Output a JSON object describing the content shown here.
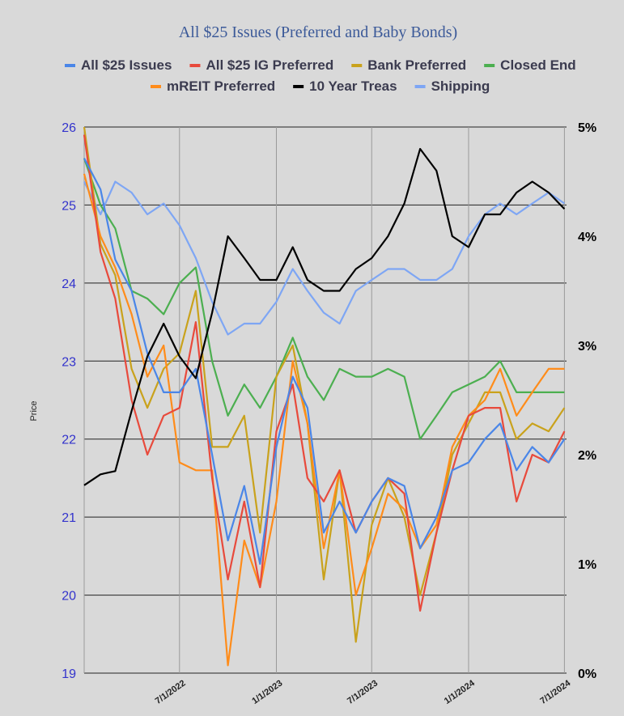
{
  "chart_data": {
    "type": "line",
    "title": "All $25 Issues (Preferred and Baby Bonds)",
    "ylabel": "Price",
    "ylim": [
      19,
      26
    ],
    "y2lim": [
      0,
      5
    ],
    "yticks": [
      "19",
      "20",
      "21",
      "22",
      "23",
      "24",
      "25",
      "26"
    ],
    "y2ticks": [
      "0%",
      "1%",
      "2%",
      "3%",
      "4%",
      "5%"
    ],
    "xlim": [
      "2022-01-01",
      "2024-07-05"
    ],
    "xticks": [
      {
        "date": "2022-07-01",
        "label": "7/1/2022"
      },
      {
        "date": "2023-01-01",
        "label": "1/1/2023"
      },
      {
        "date": "2023-07-01",
        "label": "7/1/2023"
      },
      {
        "date": "2024-01-01",
        "label": "1/1/2024"
      },
      {
        "date": "2024-07-01",
        "label": "7/1/2024"
      }
    ],
    "legend_position": "top",
    "x": [
      "2022-01-01",
      "2022-02-01",
      "2022-03-01",
      "2022-04-01",
      "2022-05-01",
      "2022-06-01",
      "2022-07-01",
      "2022-08-01",
      "2022-09-01",
      "2022-10-01",
      "2022-11-01",
      "2022-12-01",
      "2023-01-01",
      "2023-02-01",
      "2023-03-01",
      "2023-04-01",
      "2023-05-01",
      "2023-06-01",
      "2023-07-01",
      "2023-08-01",
      "2023-09-01",
      "2023-10-01",
      "2023-11-01",
      "2023-12-01",
      "2024-01-01",
      "2024-02-01",
      "2024-03-01",
      "2024-04-01",
      "2024-05-01",
      "2024-06-01",
      "2024-07-01"
    ],
    "series": [
      {
        "name": "All $25 Issues",
        "color": "#4a86e8",
        "axis": "left",
        "values": [
          25.6,
          25.2,
          24.3,
          23.9,
          23.1,
          22.6,
          22.6,
          22.9,
          21.8,
          20.7,
          21.4,
          20.4,
          21.9,
          22.8,
          22.4,
          20.8,
          21.2,
          20.8,
          21.2,
          21.5,
          21.4,
          20.6,
          21.0,
          21.6,
          21.7,
          22.0,
          22.2,
          21.6,
          21.9,
          21.7,
          22.0
        ]
      },
      {
        "name": "All $25 IG Preferred",
        "color": "#e84a3c",
        "axis": "left",
        "values": [
          25.9,
          24.4,
          23.8,
          22.5,
          21.8,
          22.3,
          22.4,
          23.5,
          21.5,
          20.2,
          21.2,
          20.1,
          22.1,
          22.7,
          21.5,
          21.2,
          21.6,
          20.8,
          21.2,
          21.5,
          21.3,
          19.8,
          20.8,
          21.6,
          22.3,
          22.4,
          22.4,
          21.2,
          21.8,
          21.7,
          22.1
        ]
      },
      {
        "name": "Bank Preferred",
        "color": "#c9a21c",
        "axis": "left",
        "values": [
          26.0,
          24.5,
          24.1,
          22.9,
          22.4,
          22.9,
          23.1,
          23.9,
          21.9,
          21.9,
          22.3,
          20.8,
          22.8,
          23.2,
          22.2,
          20.2,
          21.6,
          19.4,
          20.9,
          21.5,
          21.0,
          20.0,
          20.8,
          21.8,
          22.2,
          22.6,
          22.6,
          22.0,
          22.2,
          22.1,
          22.4
        ]
      },
      {
        "name": "Closed End",
        "color": "#4caf50",
        "axis": "left",
        "values": [
          25.6,
          25.0,
          24.7,
          23.9,
          23.8,
          23.6,
          24.0,
          24.2,
          23.0,
          22.3,
          22.7,
          22.4,
          22.8,
          23.3,
          22.8,
          22.5,
          22.9,
          22.8,
          22.8,
          22.9,
          22.8,
          22.0,
          22.3,
          22.6,
          22.7,
          22.8,
          23.0,
          22.6,
          22.6,
          22.6,
          22.6
        ]
      },
      {
        "name": "mREIT Preferred",
        "color": "#ff8c1a",
        "axis": "left",
        "values": [
          25.4,
          24.6,
          24.2,
          23.6,
          22.8,
          23.2,
          21.7,
          21.6,
          21.6,
          19.1,
          20.7,
          20.1,
          21.2,
          23.0,
          22.2,
          20.6,
          21.6,
          20.0,
          20.6,
          21.3,
          21.1,
          20.6,
          20.9,
          21.9,
          22.3,
          22.5,
          22.9,
          22.3,
          22.6,
          22.9,
          22.9
        ]
      },
      {
        "name": "10 Year Treas",
        "color": "#000000",
        "axis": "right",
        "values": [
          1.72,
          1.82,
          1.85,
          2.4,
          2.9,
          3.2,
          2.9,
          2.7,
          3.3,
          4.0,
          3.8,
          3.6,
          3.6,
          3.9,
          3.6,
          3.5,
          3.5,
          3.7,
          3.8,
          4.0,
          4.3,
          4.8,
          4.6,
          4.0,
          3.9,
          4.2,
          4.2,
          4.4,
          4.5,
          4.4,
          4.25
        ]
      },
      {
        "name": "Shipping",
        "color": "#7ea6f4",
        "axis": "right",
        "values": [
          4.5,
          4.2,
          4.5,
          4.4,
          4.2,
          4.3,
          4.1,
          3.8,
          3.4,
          3.1,
          3.2,
          3.2,
          3.4,
          3.7,
          3.5,
          3.3,
          3.2,
          3.5,
          3.6,
          3.7,
          3.7,
          3.6,
          3.6,
          3.7,
          4.0,
          4.2,
          4.3,
          4.2,
          4.3,
          4.4,
          4.3
        ]
      }
    ]
  }
}
